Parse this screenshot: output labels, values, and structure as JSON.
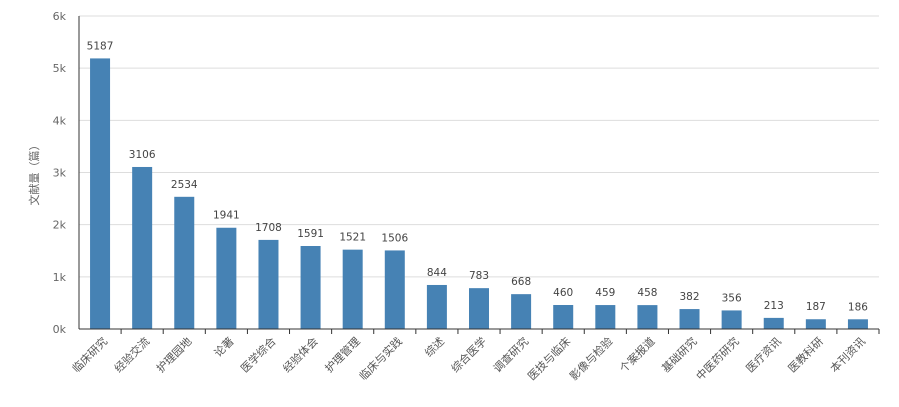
{
  "chart_data": {
    "type": "bar",
    "ylabel": "文献量（篇）",
    "ylim": [
      0,
      6000
    ],
    "yticks": [
      {
        "value": 0,
        "label": "0k"
      },
      {
        "value": 1000,
        "label": "1k"
      },
      {
        "value": 2000,
        "label": "2k"
      },
      {
        "value": 3000,
        "label": "3k"
      },
      {
        "value": 4000,
        "label": "4k"
      },
      {
        "value": 5000,
        "label": "5k"
      },
      {
        "value": 6000,
        "label": "6k"
      }
    ],
    "grid": true,
    "categories": [
      "临床研究",
      "经验交流",
      "护理园地",
      "论著",
      "医学综合",
      "经验体会",
      "护理管理",
      "临床与实践",
      "综述",
      "综合医学",
      "调查研究",
      "医技与临床",
      "影像与检验",
      "个案报道",
      "基础研究",
      "中医药研究",
      "医疗资讯",
      "医教科研",
      "本刊资讯"
    ],
    "values": [
      5187,
      3106,
      2534,
      1941,
      1708,
      1591,
      1521,
      1506,
      844,
      783,
      668,
      460,
      459,
      458,
      382,
      356,
      213,
      187,
      186
    ],
    "colors": {
      "bar": "#4682b4",
      "axis": "#333333",
      "grid": "#dddddd"
    }
  }
}
